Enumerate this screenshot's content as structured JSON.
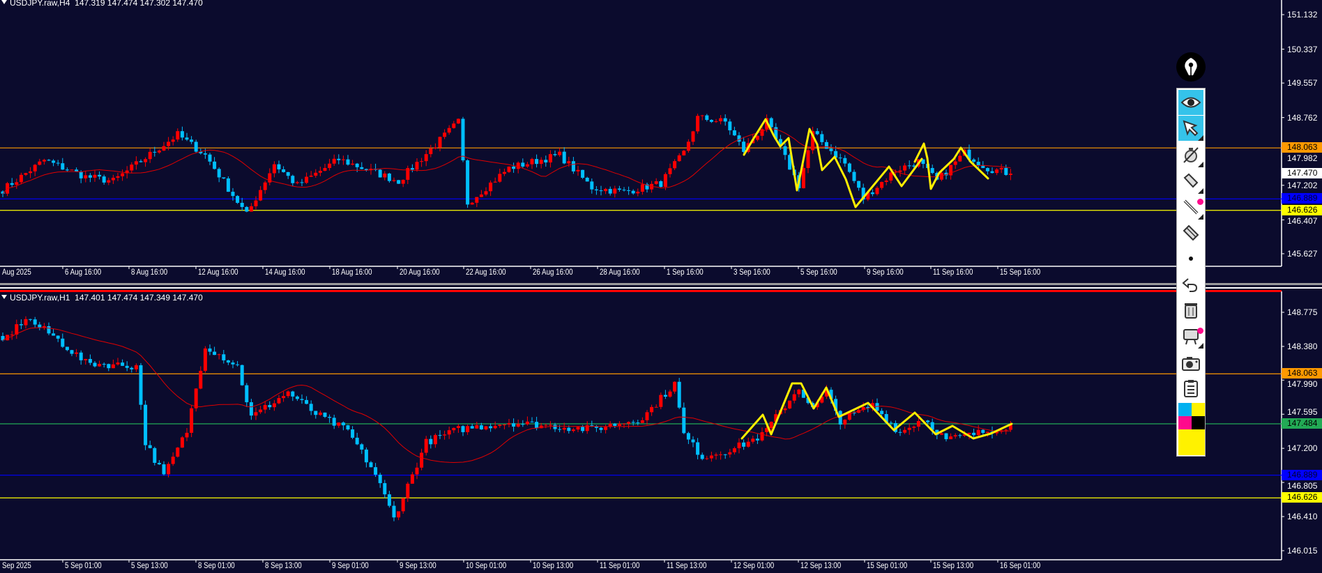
{
  "colors": {
    "background": "#0b0b2d",
    "bull_candle": "#ff0000",
    "bear_candle": "#00bfff",
    "moving_average": "#e00000",
    "annotation": "#ffee00",
    "level_orange": "#ff9900",
    "level_blue": "#0000ff",
    "level_yellow": "#ffff00",
    "level_green": "#22aa55"
  },
  "charts": [
    {
      "header": {
        "symbol": "USDJPY.raw,H4",
        "open": "147.319",
        "high": "147.474",
        "low": "147.302",
        "close": "147.470"
      },
      "price_axis": [
        "151.132",
        "150.337",
        "149.557",
        "148.762",
        "147.982",
        "147.202",
        "146.407",
        "145.627"
      ],
      "price_axis_values": [
        151.132,
        150.337,
        149.557,
        148.762,
        147.982,
        147.202,
        146.407,
        145.627
      ],
      "levels": [
        {
          "label": "148.063",
          "value": 148.063,
          "color": "#ff9900",
          "text_color": "#000000"
        },
        {
          "label": "146.889",
          "value": 146.889,
          "color": "#0000ff",
          "text_color": "#000033"
        },
        {
          "label": "146.626",
          "value": 146.626,
          "color": "#ffff00",
          "text_color": "#000000"
        }
      ],
      "last_price": {
        "label": "147.470",
        "value": 147.47
      },
      "time_axis": [
        "Aug 2025",
        "6 Aug 16:00",
        "8 Aug 16:00",
        "12 Aug 16:00",
        "14 Aug 16:00",
        "18 Aug 16:00",
        "20 Aug 16:00",
        "22 Aug 16:00",
        "26 Aug 16:00",
        "28 Aug 16:00",
        "1 Sep 16:00",
        "3 Sep 16:00",
        "5 Sep 16:00",
        "9 Sep 16:00",
        "11 Sep 16:00",
        "15 Sep 16:00"
      ],
      "price_path": [
        [
          0,
          147.1
        ],
        [
          9,
          147.78
        ],
        [
          18,
          147.4
        ],
        [
          24,
          147.3
        ],
        [
          38,
          148.37
        ],
        [
          44,
          147.9
        ],
        [
          53,
          146.52
        ],
        [
          59,
          147.7
        ],
        [
          64,
          147.2
        ],
        [
          73,
          147.8
        ],
        [
          86,
          147.3
        ],
        [
          99,
          148.66
        ],
        [
          101,
          146.8
        ],
        [
          110,
          147.6
        ],
        [
          121,
          147.9
        ],
        [
          128,
          147.15
        ],
        [
          135,
          147.05
        ],
        [
          143,
          147.25
        ],
        [
          148,
          147.95
        ],
        [
          151,
          148.76
        ],
        [
          157,
          148.66
        ],
        [
          161,
          148.0
        ],
        [
          166,
          148.66
        ],
        [
          173,
          147.2
        ],
        [
          176,
          148.4
        ],
        [
          183,
          147.7
        ],
        [
          187,
          146.9
        ],
        [
          194,
          147.55
        ],
        [
          199,
          147.75
        ],
        [
          203,
          147.3
        ],
        [
          209,
          147.95
        ],
        [
          214,
          147.6
        ],
        [
          219,
          147.47
        ]
      ]
    },
    {
      "header": {
        "symbol": "USDJPY.raw,H1",
        "open": "147.401",
        "high": "147.474",
        "low": "147.349",
        "close": "147.470"
      },
      "price_axis": [
        "148.775",
        "148.380",
        "147.990",
        "147.595",
        "147.200",
        "146.805",
        "146.410",
        "146.015"
      ],
      "price_axis_values": [
        148.775,
        148.38,
        147.99,
        147.595,
        147.2,
        146.805,
        146.41,
        146.015
      ],
      "levels": [
        {
          "label": "148.063",
          "value": 148.063,
          "color": "#ff9900",
          "text_color": "#000000"
        },
        {
          "label": "147.484",
          "value": 147.484,
          "color": "#22aa55",
          "text_color": "#000000"
        },
        {
          "label": "146.889",
          "value": 146.889,
          "color": "#0000ff",
          "text_color": "#000033"
        },
        {
          "label": "146.626",
          "value": 146.626,
          "color": "#ffff00",
          "text_color": "#000000"
        }
      ],
      "time_axis": [
        "Sep 2025",
        "5 Sep 01:00",
        "5 Sep 13:00",
        "8 Sep 01:00",
        "8 Sep 13:00",
        "9 Sep 01:00",
        "9 Sep 13:00",
        "10 Sep 01:00",
        "10 Sep 13:00",
        "11 Sep 01:00",
        "11 Sep 13:00",
        "12 Sep 01:00",
        "12 Sep 13:00",
        "15 Sep 01:00",
        "15 Sep 13:00",
        "16 Sep 01:00"
      ],
      "price_path": [
        [
          0,
          148.44
        ],
        [
          5,
          148.71
        ],
        [
          11,
          148.5
        ],
        [
          18,
          148.19
        ],
        [
          29,
          148.15
        ],
        [
          31,
          147.27
        ],
        [
          35,
          146.88
        ],
        [
          40,
          147.4
        ],
        [
          44,
          148.39
        ],
        [
          51,
          148.15
        ],
        [
          54,
          147.56
        ],
        [
          62,
          147.85
        ],
        [
          68,
          147.6
        ],
        [
          75,
          147.4
        ],
        [
          81,
          146.9
        ],
        [
          85,
          146.39
        ],
        [
          92,
          147.27
        ],
        [
          99,
          147.42
        ],
        [
          110,
          147.5
        ],
        [
          128,
          147.42
        ],
        [
          139,
          147.55
        ],
        [
          146,
          147.95
        ],
        [
          148,
          147.36
        ],
        [
          152,
          147.1
        ],
        [
          159,
          147.2
        ],
        [
          165,
          147.35
        ],
        [
          173,
          147.9
        ],
        [
          176,
          147.65
        ],
        [
          179,
          147.85
        ],
        [
          182,
          147.52
        ],
        [
          189,
          147.7
        ],
        [
          195,
          147.38
        ],
        [
          200,
          147.55
        ],
        [
          205,
          147.3
        ],
        [
          210,
          147.35
        ],
        [
          219,
          147.47
        ]
      ]
    }
  ],
  "toolbar": {
    "logo": "fountain-pen-logo",
    "tools": [
      "eye-icon",
      "cursor-arrow-icon",
      "stopwatch-off-icon",
      "pencil-icon",
      "line-icon",
      "eraser-icon",
      "dot-icon",
      "undo-icon",
      "trash-icon",
      "easel-icon",
      "camera-icon",
      "clipboard-icon"
    ],
    "palette": [
      "#00b0f0",
      "#fff200",
      "#ff0a8c",
      "#000000",
      "#fff200"
    ]
  }
}
